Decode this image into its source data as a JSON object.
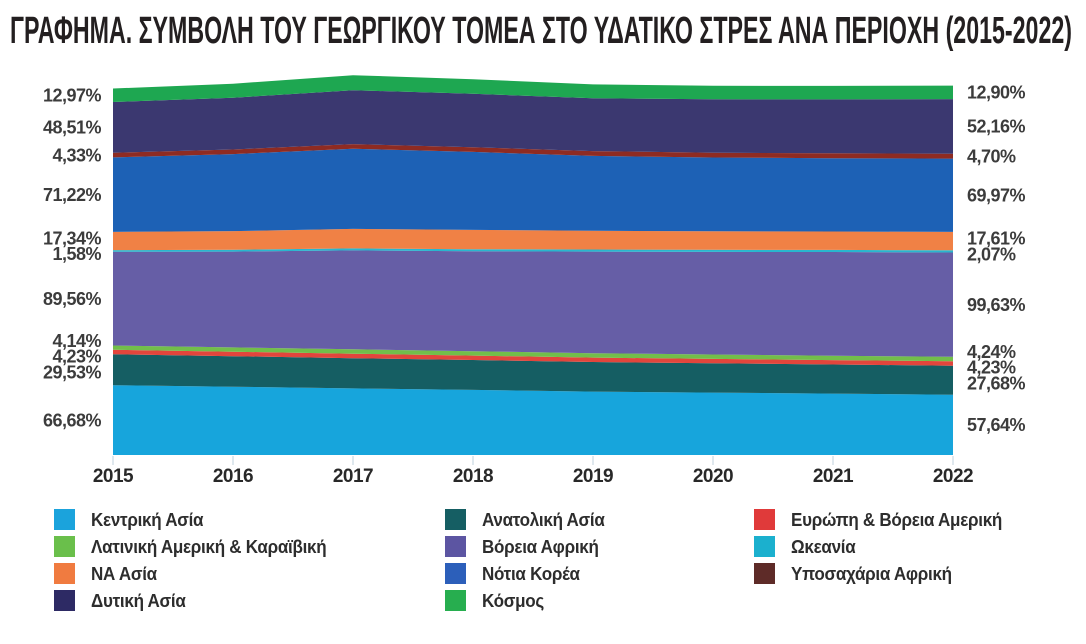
{
  "title": "ΓΡΑΦΗΜΑ. ΣΥΜΒΟΛΗ ΤΟΥ ΓΕΩΡΓΙΚΟΥ ΤΟΜΕΑ ΣΤΟ ΥΔΑΤΙΚΟ ΣΤΡΕΣ ΑΝΑ ΠΕΡΙΟΧΗ (2015-2022)",
  "chart_data": {
    "type": "area",
    "stacked": true,
    "unit": "%",
    "grid": false,
    "legend_position": "bottom",
    "x_ticks": [
      "2015",
      "2016",
      "2017",
      "2018",
      "2019",
      "2020",
      "2021",
      "2022"
    ],
    "stack_order": "bottom-to-top",
    "series": [
      {
        "key": "kentriki-asia",
        "name": "Κεντρική Ασία",
        "color": "#17A5DC",
        "swatch": "#1BA3DC",
        "values": [
          66.68,
          65.2,
          63.6,
          62.2,
          60.6,
          59.6,
          58.6,
          57.64
        ],
        "label_left": "66,68%",
        "label_right": "57,64%"
      },
      {
        "key": "anatoliki-asia",
        "name": "Ανατολική Ασία",
        "color": "#155E63",
        "swatch": "#155E63",
        "values": [
          29.53,
          29.2,
          28.9,
          28.5,
          28.2,
          28.0,
          27.8,
          27.68
        ],
        "label_left": "29,53%",
        "label_right": "27,68%"
      },
      {
        "key": "evropi-voreia-ameriki",
        "name": "Ευρώπη & Βόρεια Αμερική",
        "color": "#E2453C",
        "swatch": "#E03A3A",
        "values": [
          4.23,
          4.23,
          4.23,
          4.23,
          4.23,
          4.23,
          4.23,
          4.23
        ],
        "label_left": "4,23%",
        "label_right": "4,23%"
      },
      {
        "key": "latiniki-ameriki-karaiviki",
        "name": "Λατινική Αμερική & Καραϊβική",
        "color": "#72BE4A",
        "swatch": "#6ABF4B",
        "values": [
          4.14,
          4.16,
          4.2,
          4.2,
          4.2,
          4.2,
          4.22,
          4.24
        ],
        "label_left": "4,14%",
        "label_right": "4,24%"
      },
      {
        "key": "voreia-afriki",
        "name": "Βόρεια Αφρική",
        "color": "#665EA6",
        "swatch": "#5C55A2",
        "values": [
          89.56,
          91.5,
          94.5,
          95.5,
          97.0,
          98.0,
          99.0,
          99.63
        ],
        "label_left": "89,56%",
        "label_right": "99,63%"
      },
      {
        "key": "okeania",
        "name": "Ωκεανία",
        "color": "#29B6CE",
        "swatch": "#1BB0CE",
        "values": [
          1.58,
          1.7,
          1.9,
          1.95,
          2.0,
          2.0,
          2.05,
          2.07
        ],
        "label_left": "1,58%",
        "label_right": "2,07%"
      },
      {
        "key": "na-asia",
        "name": "ΝΑ Ασία",
        "color": "#F08145",
        "swatch": "#F07B40",
        "values": [
          17.34,
          17.9,
          18.6,
          18.4,
          17.9,
          17.6,
          17.6,
          17.61
        ],
        "label_left": "17,34%",
        "label_right": "17,61%"
      },
      {
        "key": "notia-korea",
        "name": "Νότια Κορέα",
        "color": "#1D61B5",
        "swatch": "#2C5FBA",
        "values": [
          71.22,
          73.5,
          76.5,
          74.5,
          71.5,
          70.5,
          70.0,
          69.97
        ],
        "label_left": "71,22%",
        "label_right": "69,97%"
      },
      {
        "key": "yposaharia-afriki",
        "name": "Υποσαχάρια Αφρική",
        "color": "#8E2B22",
        "swatch": "#5E2B28",
        "values": [
          4.33,
          4.4,
          4.5,
          4.55,
          4.6,
          4.6,
          4.65,
          4.7
        ],
        "label_left": "4,33%",
        "label_right": "4,70%"
      },
      {
        "key": "dytiki-asia",
        "name": "Δυτική Ασία",
        "color": "#3B3870",
        "swatch": "#2D2A64",
        "values": [
          48.51,
          49.5,
          51.5,
          51.0,
          50.5,
          51.0,
          51.5,
          52.16
        ],
        "label_left": "48,51%",
        "label_right": "52,16%"
      },
      {
        "key": "kosmos",
        "name": "Κόσμος",
        "color": "#1EA751",
        "swatch": "#27AE4F",
        "values": [
          12.97,
          13.3,
          14.3,
          13.9,
          13.2,
          12.9,
          12.85,
          12.9
        ],
        "label_left": "12,97%",
        "label_right": "12,90%"
      }
    ],
    "legend_columns": [
      [
        "kentriki-asia",
        "latiniki-ameriki-karaiviki",
        "na-asia",
        "dytiki-asia"
      ],
      [
        "anatoliki-asia",
        "voreia-afriki",
        "notia-korea",
        "kosmos"
      ],
      [
        "evropi-voreia-ameriki",
        "okeania",
        "yposaharia-afriki"
      ]
    ]
  }
}
